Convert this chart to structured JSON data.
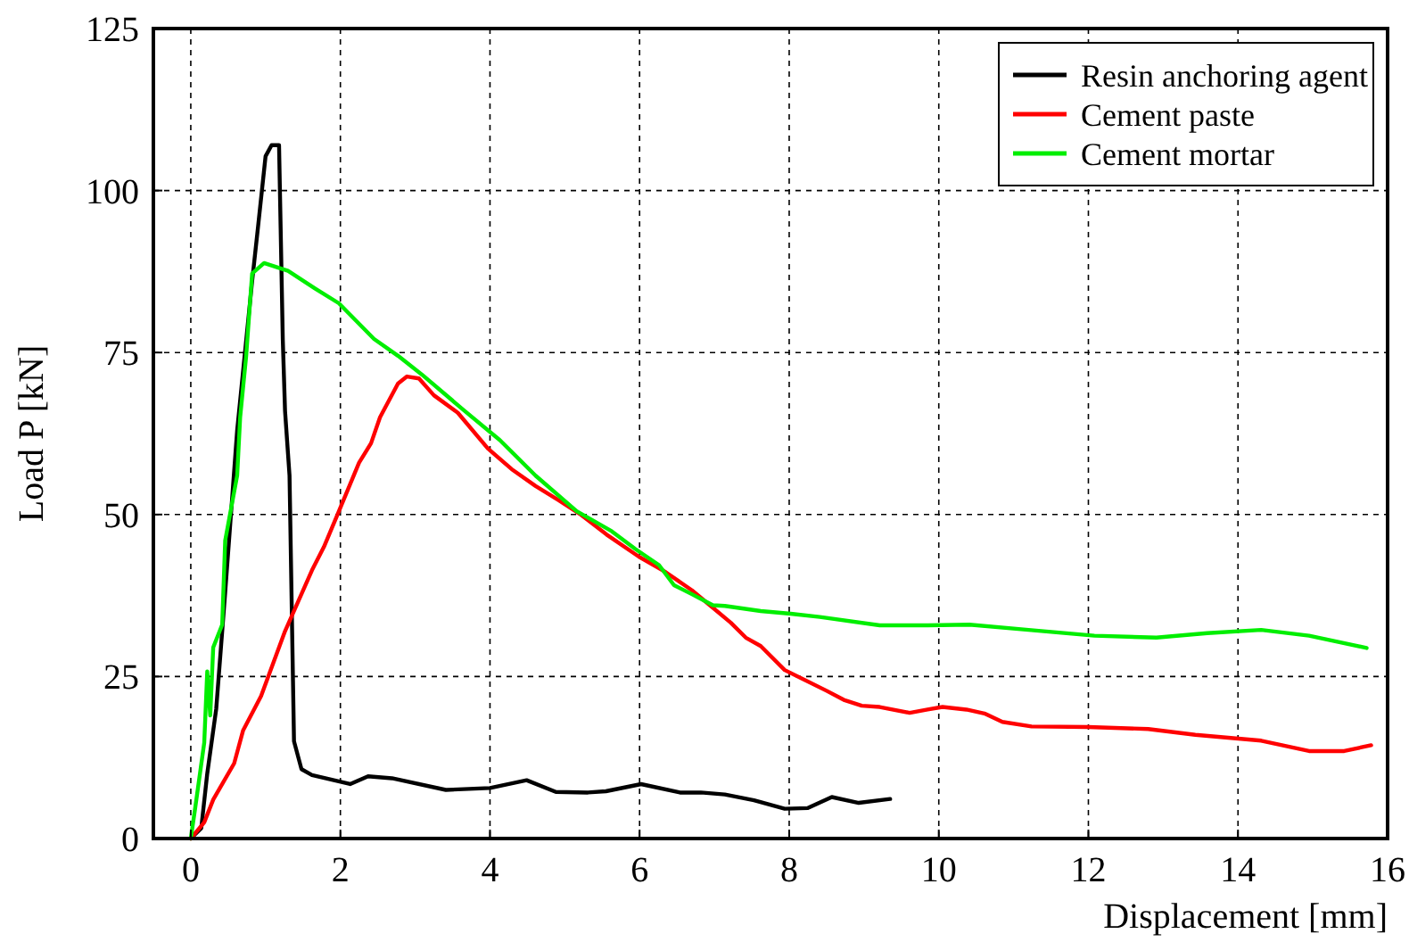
{
  "chart_data": {
    "type": "line",
    "xlabel": "Displacement [mm]",
    "ylabel": "Load P [kN]",
    "xlim": [
      -0.5,
      16
    ],
    "ylim": [
      0,
      125
    ],
    "xticks": [
      0,
      2,
      4,
      6,
      8,
      10,
      12,
      14,
      16
    ],
    "yticks": [
      0,
      25,
      50,
      75,
      100,
      125
    ],
    "grid": true,
    "legend": "top right",
    "line_style": "solid",
    "marker": "none",
    "series": [
      {
        "name": "Resin anchoring agent",
        "color": "#000000",
        "x": [
          0,
          0.14,
          0.22,
          0.34,
          0.46,
          0.62,
          0.82,
          0.9,
          1.0,
          1.08,
          1.18,
          1.23,
          1.26,
          1.32,
          1.38,
          1.48,
          1.62,
          2.13,
          2.37,
          2.69,
          3.41,
          4.0,
          4.49,
          4.88,
          5.31,
          5.55,
          6.02,
          6.54,
          6.82,
          7.14,
          7.53,
          7.94,
          8.25,
          8.57,
          8.93,
          9.35
        ],
        "values": [
          0,
          1.6,
          10,
          20,
          38,
          63,
          86,
          94.5,
          105.3,
          107,
          107,
          77,
          66,
          56,
          15,
          10.7,
          9.8,
          8.4,
          9.6,
          9.3,
          7.5,
          7.8,
          9,
          7.2,
          7.1,
          7.3,
          8.4,
          7.1,
          7.1,
          6.8,
          5.9,
          4.6,
          4.7,
          6.4,
          5.5,
          6.1
        ]
      },
      {
        "name": "Cement paste",
        "color": "#ff0000",
        "x": [
          0,
          0.18,
          0.3,
          0.58,
          0.7,
          0.94,
          1.26,
          1.62,
          1.78,
          1.98,
          2.25,
          2.41,
          2.53,
          2.77,
          2.89,
          3.05,
          3.25,
          3.57,
          3.97,
          4.29,
          4.61,
          4.92,
          5.2,
          5.56,
          5.99,
          6.35,
          6.7,
          6.94,
          7.22,
          7.42,
          7.62,
          7.94,
          8.5,
          8.73,
          8.97,
          9.21,
          9.61,
          9.85,
          10.05,
          10.37,
          10.61,
          10.85,
          11.24,
          12.0,
          12.8,
          13.43,
          14.31,
          14.95,
          15.42,
          15.78
        ],
        "values": [
          0,
          2.5,
          6,
          11.6,
          16.7,
          22,
          32,
          41.4,
          45,
          50.5,
          58,
          61,
          65,
          70.2,
          71.3,
          71,
          68.4,
          65.7,
          60.2,
          57,
          54.4,
          52.2,
          50.1,
          46.9,
          43.5,
          41.1,
          38.3,
          36,
          33.3,
          31,
          29.7,
          26,
          22.8,
          21.4,
          20.5,
          20.3,
          19.4,
          19.9,
          20.3,
          19.9,
          19.3,
          18,
          17.3,
          17.2,
          16.9,
          16,
          15.1,
          13.5,
          13.5,
          14.4
        ]
      },
      {
        "name": "Cement mortar",
        "color": "#00ee00",
        "x": [
          0,
          0.06,
          0.18,
          0.22,
          0.26,
          0.3,
          0.42,
          0.46,
          0.62,
          0.66,
          0.74,
          0.78,
          0.82,
          0.98,
          1.3,
          1.66,
          1.98,
          2.45,
          2.77,
          3.09,
          3.65,
          4.13,
          4.61,
          5.16,
          5.63,
          5.94,
          6.26,
          6.46,
          6.7,
          6.98,
          7.14,
          7.62,
          8.02,
          8.41,
          9.21,
          9.85,
          10.41,
          11.2,
          12.08,
          12.91,
          13.59,
          14.31,
          14.95,
          15.72
        ],
        "values": [
          0,
          4.8,
          14.8,
          25.8,
          19,
          29.5,
          33,
          46,
          56,
          65,
          74.4,
          80.8,
          87.2,
          88.8,
          87.6,
          84.9,
          82.6,
          77.1,
          74.5,
          71.6,
          66.1,
          61.5,
          56,
          50.5,
          47.4,
          44.7,
          42.2,
          39.1,
          37.7,
          36,
          35.9,
          35.1,
          34.7,
          34.2,
          32.9,
          32.9,
          33,
          32.2,
          31.3,
          31,
          31.7,
          32.2,
          31.3,
          29.4
        ]
      }
    ]
  }
}
